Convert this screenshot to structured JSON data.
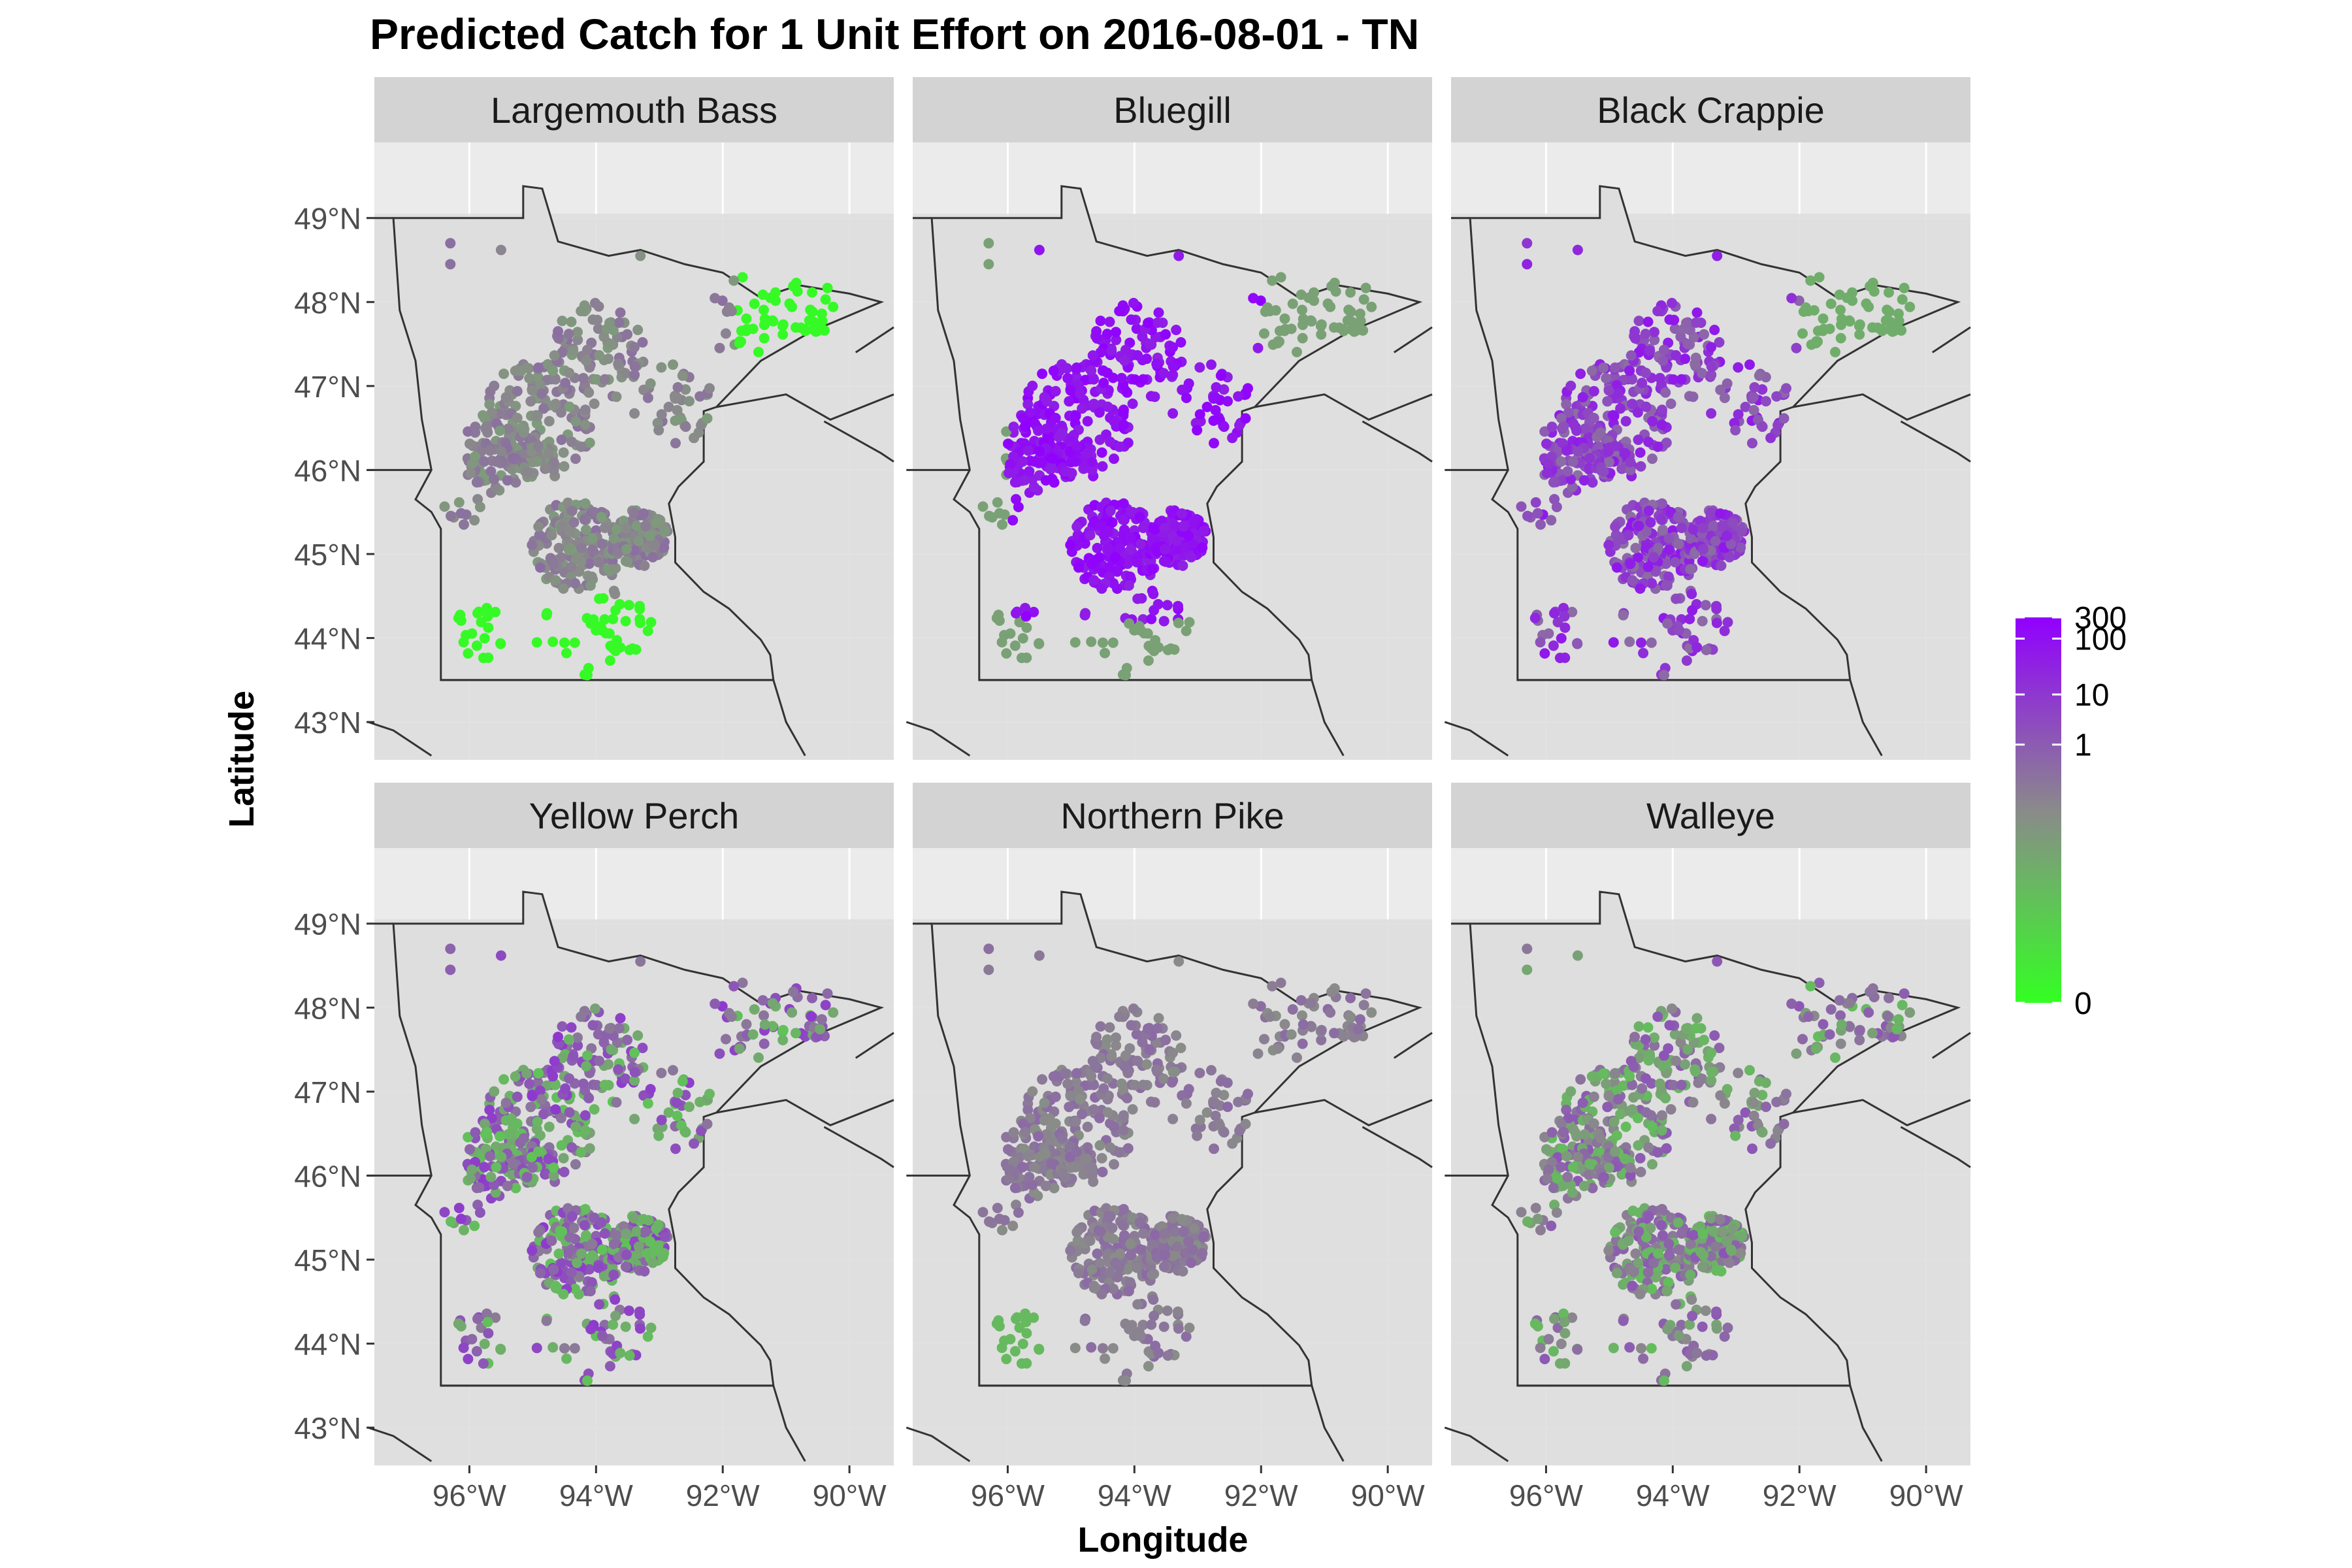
{
  "title": "Predicted Catch for 1 Unit Effort on 2016-08-01 - TN",
  "x_axis_label": "Longitude",
  "y_axis_label": "Latitude",
  "x_tick_labels": [
    "96°W",
    "94°W",
    "92°W",
    "90°W"
  ],
  "y_tick_labels": [
    "49°N",
    "48°N",
    "47°N",
    "46°N",
    "45°N",
    "44°N",
    "43°N"
  ],
  "legend": {
    "ticks": [
      "300",
      "100",
      "10",
      "1",
      "0"
    ],
    "high_color": "#9100ff",
    "mid_color": "#8a8a8a",
    "low_color": "#33ff22"
  },
  "colors": {
    "panel_background": "#ebebeb",
    "land": "#dedede",
    "border_line": "#333333",
    "strip_background": "#d3d3d3",
    "gridline": "#ffffff"
  },
  "panels": [
    {
      "name": "Largemouth Bass"
    },
    {
      "name": "Bluegill"
    },
    {
      "name": "Black Crappie"
    },
    {
      "name": "Yellow Perch"
    },
    {
      "name": "Northern Pike"
    },
    {
      "name": "Walleye"
    }
  ]
}
